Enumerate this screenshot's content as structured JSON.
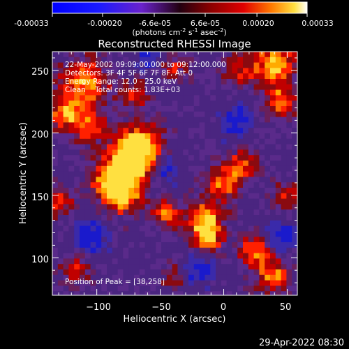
{
  "figure": {
    "title": "Reconstructed RHESSI Image",
    "timestamp": "29-Apr-2022 08:30"
  },
  "colorbar": {
    "labels": [
      "-0.00033",
      "-0.00020",
      "-6.6e-05",
      "6.6e-05",
      "0.00020",
      "0.00033"
    ],
    "units_prefix": "(photons cm",
    "units_exp1": "-2",
    "units_mid": " s",
    "units_exp2": "-1",
    "units_mid2": " asec",
    "units_exp3": "-2",
    "units_suffix": ")"
  },
  "annotations": {
    "time_range": "22-May-2002 09:09:00.000 to 09:12:00.000",
    "detectors": "Detectors: 3F 4F 5F 6F 7F 8F, Att 0",
    "energy_range": "Energy Range: 12.0 - 25.0 keV",
    "clean_counts": "Clean    Total counts: 1.83E+03",
    "peak": "Position of Peak = [38,258]"
  },
  "colors": {
    "background": "#000000",
    "text": "#ffffff",
    "map_background": "#3a1f7a"
  },
  "chart_data": {
    "type": "heatmap",
    "title": "Reconstructed RHESSI Image",
    "xlabel": "Heliocentric X (arcsec)",
    "ylabel": "Heliocentric Y (arcsec)",
    "xlim": [
      -135,
      58
    ],
    "ylim": [
      70,
      265
    ],
    "xticks": [
      -100,
      -50,
      0,
      50
    ],
    "yticks": [
      100,
      150,
      200,
      250
    ],
    "colorbar_range": [
      -0.00033,
      0.00033
    ],
    "peak_position": [
      38,
      258
    ]
  }
}
